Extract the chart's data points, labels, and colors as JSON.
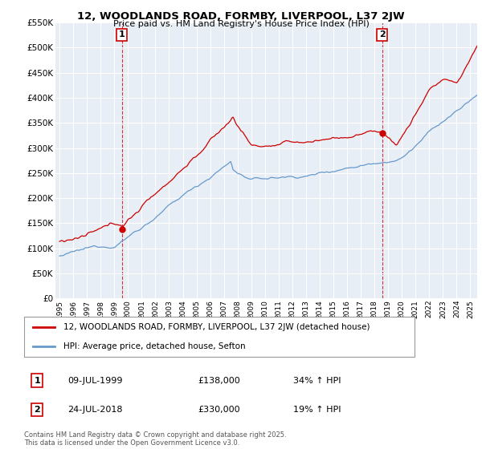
{
  "title": "12, WOODLANDS ROAD, FORMBY, LIVERPOOL, L37 2JW",
  "subtitle": "Price paid vs. HM Land Registry's House Price Index (HPI)",
  "red_line_label": "12, WOODLANDS ROAD, FORMBY, LIVERPOOL, L37 2JW (detached house)",
  "blue_line_label": "HPI: Average price, detached house, Sefton",
  "sale1_date": "09-JUL-1999",
  "sale1_price": 138000,
  "sale1_label": "34% ↑ HPI",
  "sale2_date": "24-JUL-2018",
  "sale2_price": 330000,
  "sale2_label": "19% ↑ HPI",
  "sale1_year": 1999.55,
  "sale2_year": 2018.56,
  "ylim": [
    0,
    550000
  ],
  "xlim": [
    1994.7,
    2025.5
  ],
  "yticks": [
    0,
    50000,
    100000,
    150000,
    200000,
    250000,
    300000,
    350000,
    400000,
    450000,
    500000,
    550000
  ],
  "footer": "Contains HM Land Registry data © Crown copyright and database right 2025.\nThis data is licensed under the Open Government Licence v3.0.",
  "red_color": "#cc0000",
  "blue_color": "#6699cc",
  "chart_bg": "#e8eef5",
  "background_color": "#ffffff",
  "grid_color": "#ffffff"
}
